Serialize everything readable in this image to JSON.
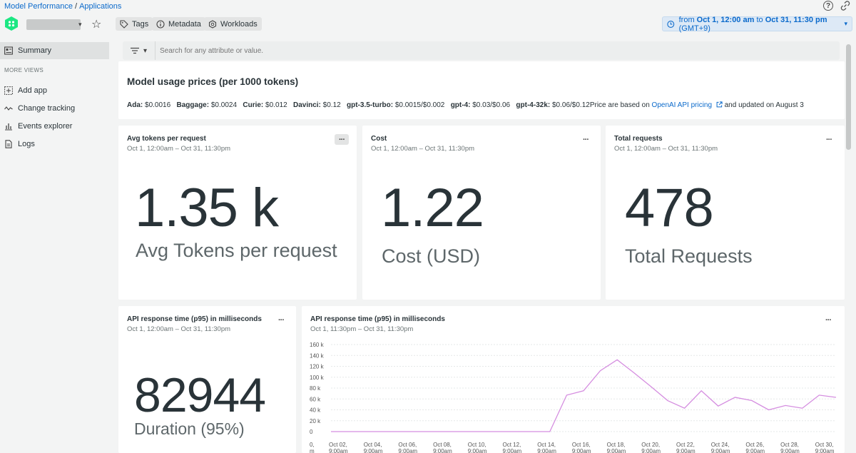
{
  "breadcrumb": {
    "root": "Model Performance",
    "sep": "/",
    "current": "Applications"
  },
  "header": {
    "chips": [
      "Tags",
      "Metadata",
      "Workloads"
    ],
    "time": {
      "prefix": "from ",
      "from": "Oct 1, 12:00 am",
      "to_word": " to ",
      "to": "Oct 31, 11:30 pm",
      "tz": "(GMT+9)"
    }
  },
  "sidebar": {
    "summary": "Summary",
    "more_views": "MORE VIEWS",
    "items": [
      "Add app",
      "Change tracking",
      "Events explorer",
      "Logs"
    ]
  },
  "search": {
    "placeholder": "Search for any attribute or value."
  },
  "prices": {
    "title": "Model usage prices (per 1000 tokens)",
    "entries": [
      {
        "model": "Ada:",
        "price": " $0.0016"
      },
      {
        "model": "Baggage:",
        "price": " $0.0024"
      },
      {
        "model": "Curie:",
        "price": " $0.012"
      },
      {
        "model": "Davinci:",
        "price": " $0.12"
      },
      {
        "model": "gpt-3.5-turbo:",
        "price": " $0.0015/$0.002"
      },
      {
        "model": "gpt-4:",
        "price": " $0.03/$0.06"
      },
      {
        "model": "gpt-4-32k:",
        "price": " $0.06/$0.12"
      }
    ],
    "note_pre": "Price are based on ",
    "link": "OpenAI API pricing",
    "note_post": " and updated on August 3"
  },
  "billboards": [
    {
      "title": "Avg tokens per request",
      "range": "Oct 1, 12:00am – Oct 31, 11:30pm",
      "value": "1.35 k",
      "label": "Avg Tokens per request"
    },
    {
      "title": "Cost",
      "range": "Oct 1, 12:00am – Oct 31, 11:30pm",
      "value": "1.22",
      "label": "Cost (USD)"
    },
    {
      "title": "Total requests",
      "range": "Oct 1, 12:00am – Oct 31, 11:30pm",
      "value": "478",
      "label": "Total Requests"
    },
    {
      "title": "API response time (p95) in milliseconds",
      "range": "Oct 1, 12:00am – Oct 31, 11:30pm",
      "value": "82944",
      "label": "Duration (95%)"
    }
  ],
  "menu_glyph": "···",
  "line_panel": {
    "title": "API response time (p95) in milliseconds",
    "range": "Oct 1, 11:30pm – Oct 31, 11:30pm"
  },
  "colors": {
    "accent": "#0b6acb",
    "series": "#d58ee0",
    "logo": "#1ce783"
  },
  "chart_data": {
    "type": "line",
    "title": "API response time (p95) in milliseconds",
    "ylim": [
      0,
      160000
    ],
    "y_ticks": [
      0,
      20000,
      40000,
      60000,
      80000,
      100000,
      120000,
      140000,
      160000
    ],
    "y_tick_labels": [
      "0",
      "20 k",
      "40 k",
      "60 k",
      "80 k",
      "100 k",
      "120 k",
      "140 k",
      "160 k"
    ],
    "x_tick_labels": [
      [
        "0,",
        "m"
      ],
      [
        "Oct 02,",
        "9:00am"
      ],
      [
        "Oct 04,",
        "9:00am"
      ],
      [
        "Oct 06,",
        "9:00am"
      ],
      [
        "Oct 08,",
        "9:00am"
      ],
      [
        "Oct 10,",
        "9:00am"
      ],
      [
        "Oct 12,",
        "9:00am"
      ],
      [
        "Oct 14,",
        "9:00am"
      ],
      [
        "Oct 16,",
        "9:00am"
      ],
      [
        "Oct 18,",
        "9:00am"
      ],
      [
        "Oct 20,",
        "9:00am"
      ],
      [
        "Oct 22,",
        "9:00am"
      ],
      [
        "Oct 24,",
        "9:00am"
      ],
      [
        "Oct 26,",
        "9:00am"
      ],
      [
        "Oct 28,",
        "9:00am"
      ],
      [
        "Oct 30,",
        "9:00am"
      ]
    ],
    "grid": true,
    "series": [
      {
        "x": [
          1,
          2,
          3,
          4,
          5,
          6,
          7,
          8,
          9,
          10,
          11,
          12,
          13,
          14,
          15,
          16,
          17,
          18,
          19,
          20,
          21,
          22,
          23,
          24,
          25,
          26,
          27,
          28,
          29,
          30,
          31
        ],
        "values": [
          0,
          0,
          0,
          0,
          0,
          0,
          0,
          0,
          0,
          0,
          0,
          0,
          0,
          0,
          67000,
          75000,
          112000,
          132000,
          108000,
          83000,
          57000,
          43000,
          75000,
          47000,
          63000,
          57000,
          40000,
          48000,
          43000,
          67000,
          63000
        ]
      }
    ]
  }
}
